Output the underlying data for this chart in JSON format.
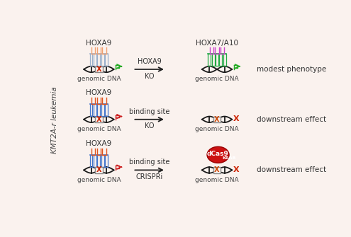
{
  "bg_color": "#faf2ee",
  "border_color": "#c8c8c8",
  "side_label": "KMT2A-r leukemia",
  "rows": [
    {
      "left_label": "HOXA9",
      "left_top_color": "#f0a070",
      "left_bottom_color": "#9ab0cc",
      "left_x_color": "#cc2200",
      "left_flag_color": "#22aa22",
      "arrow_label1": "HOXA9",
      "arrow_label2": "KO",
      "right_label": "HOXA7/A10",
      "right_top_color": "#cc44cc",
      "right_bottom_color": "#22aa44",
      "right_x_color": null,
      "right_flag_color": "#22aa22",
      "right_has_circle": false,
      "right_has_x_dna": false,
      "outcome": "modest phenotype"
    },
    {
      "left_label": "HOXA9",
      "left_top_color": "#e05520",
      "left_bottom_color": "#4477cc",
      "left_x_color": "#cc2200",
      "left_flag_color": "#cc2222",
      "arrow_label1": "binding site",
      "arrow_label2": "KO",
      "right_label": null,
      "right_top_color": null,
      "right_bottom_color": null,
      "right_x_color": "#cc2200",
      "right_flag_color": null,
      "right_has_circle": false,
      "right_has_x_dna": true,
      "outcome": "downstream effect"
    },
    {
      "left_label": "HOXA9",
      "left_top_color": "#e05520",
      "left_bottom_color": "#4477cc",
      "left_x_color": "#cc2200",
      "left_flag_color": "#cc2222",
      "arrow_label1": "binding site",
      "arrow_label2": "CRISPRi",
      "right_label": null,
      "right_top_color": null,
      "right_bottom_color": null,
      "right_x_color": "#cc2200",
      "right_flag_color": null,
      "right_has_circle": true,
      "right_has_x_dna": true,
      "outcome": "downstream effect"
    }
  ]
}
